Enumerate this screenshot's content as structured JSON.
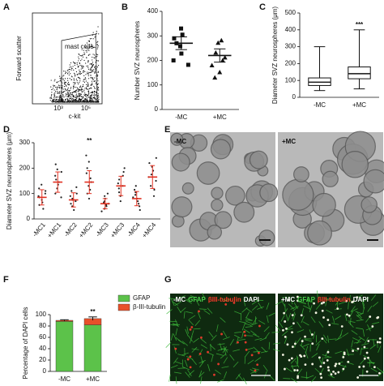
{
  "chart_data": [
    {
      "panel": "B",
      "type": "dot",
      "ylabel": "Number SVZ neurospheres",
      "categories": [
        "-MC",
        "+MC"
      ],
      "points": [
        [
          330,
          305,
          290,
          270,
          258,
          228,
          200,
          182
        ],
        [
          282,
          272,
          232,
          212,
          200,
          180,
          152,
          130
        ]
      ],
      "means": [
        270,
        220
      ],
      "errors": [
        26,
        27
      ],
      "markers": [
        "square",
        "triangle"
      ],
      "color": "#111111",
      "mean_color": "#111111",
      "ylim": [
        0,
        400
      ],
      "yticks": [
        0,
        100,
        200,
        300,
        400
      ]
    },
    {
      "panel": "C",
      "type": "box",
      "ylabel": "Diameter SVZ neurospheres (μm)",
      "categories": [
        "-MC",
        "+MC"
      ],
      "boxes": [
        {
          "min": 40,
          "q1": 70,
          "median": 90,
          "q3": 115,
          "max": 300
        },
        {
          "min": 50,
          "q1": 110,
          "median": 140,
          "q3": 180,
          "max": 400
        }
      ],
      "annotations": [
        {
          "text": "***",
          "category": "+MC"
        }
      ],
      "color": "#111111",
      "ylim": [
        0,
        500
      ],
      "yticks": [
        0,
        100,
        200,
        300,
        400,
        500
      ]
    },
    {
      "panel": "D",
      "type": "dot",
      "ylabel": "Diameter SVZ neurospheres (μm)",
      "categories": [
        "-MC1",
        "+MC1",
        "-MC2",
        "+MC2",
        "-MC3",
        "+MC3",
        "-MC4",
        "+MC4"
      ],
      "points": [
        [
          40,
          55,
          65,
          75,
          85,
          90,
          100,
          110,
          120,
          135
        ],
        [
          85,
          100,
          120,
          135,
          145,
          155,
          170,
          185,
          195,
          215
        ],
        [
          35,
          50,
          60,
          70,
          75,
          80,
          90,
          100,
          110,
          125
        ],
        [
          80,
          100,
          115,
          130,
          145,
          160,
          180,
          200,
          225,
          250
        ],
        [
          30,
          40,
          50,
          55,
          60,
          65,
          70,
          80,
          90,
          100
        ],
        [
          70,
          90,
          105,
          120,
          130,
          140,
          155,
          170,
          185,
          200
        ],
        [
          35,
          50,
          60,
          70,
          80,
          85,
          95,
          105,
          115,
          130
        ],
        [
          90,
          115,
          130,
          150,
          165,
          175,
          190,
          205,
          220,
          240
        ]
      ],
      "means": [
        85,
        145,
        75,
        145,
        60,
        130,
        80,
        165
      ],
      "errors": [
        30,
        40,
        28,
        45,
        20,
        38,
        28,
        45
      ],
      "markers": [
        "dot",
        "dot",
        "dot",
        "dot",
        "dot",
        "dot",
        "dot",
        "dot"
      ],
      "color": "#222222",
      "mean_color": "#e03020",
      "annotations": [
        {
          "text": "**",
          "category": "+MC2"
        }
      ],
      "ylim": [
        0,
        300
      ],
      "yticks": [
        0,
        100,
        200,
        300
      ]
    },
    {
      "panel": "F",
      "type": "stacked_bar",
      "ylabel": "Percentage of DAPI cells",
      "categories": [
        "-MC",
        "+MC"
      ],
      "series": [
        {
          "name": "GFAP",
          "color": "#5cc24a",
          "values": [
            88,
            82
          ]
        },
        {
          "name": "β-III-tubulin",
          "color": "#e8502a",
          "values": [
            2,
            11
          ],
          "errors": [
            1,
            3
          ]
        }
      ],
      "annotations": [
        {
          "text": "**",
          "category": "+MC"
        }
      ],
      "ylim": [
        0,
        100
      ],
      "yticks": [
        0,
        20,
        40,
        60,
        80,
        100
      ]
    }
  ],
  "images": [
    {
      "panel": "A",
      "kind": "flow",
      "ylabel": "Forward scatter",
      "xlabel": "c-kit",
      "gate_label": "mast cells",
      "xticklabels": [
        "10³",
        "10⁵"
      ]
    },
    {
      "panel": "E",
      "kind": "brightfield",
      "labels": [
        [
          {
            "text": "-MC",
            "color": "#111111"
          }
        ],
        [
          {
            "text": "+MC",
            "color": "#111111"
          }
        ]
      ]
    },
    {
      "panel": "G",
      "kind": "fluorescence",
      "labels": [
        [
          {
            "text": "-MC",
            "color": "#ffffff"
          },
          {
            "text": "GFAP",
            "color": "#49d04a"
          },
          {
            "text": "βIII-tubulin",
            "color": "#ff3a2a"
          },
          {
            "text": "DAPI",
            "color": "#ffffff"
          }
        ],
        [
          {
            "text": "+MC",
            "color": "#ffffff"
          },
          {
            "text": "GFAP",
            "color": "#49d04a"
          },
          {
            "text": "βIII-tubulin",
            "color": "#ff3a2a"
          },
          {
            "text": "DAPI",
            "color": "#ffffff"
          }
        ]
      ]
    }
  ]
}
